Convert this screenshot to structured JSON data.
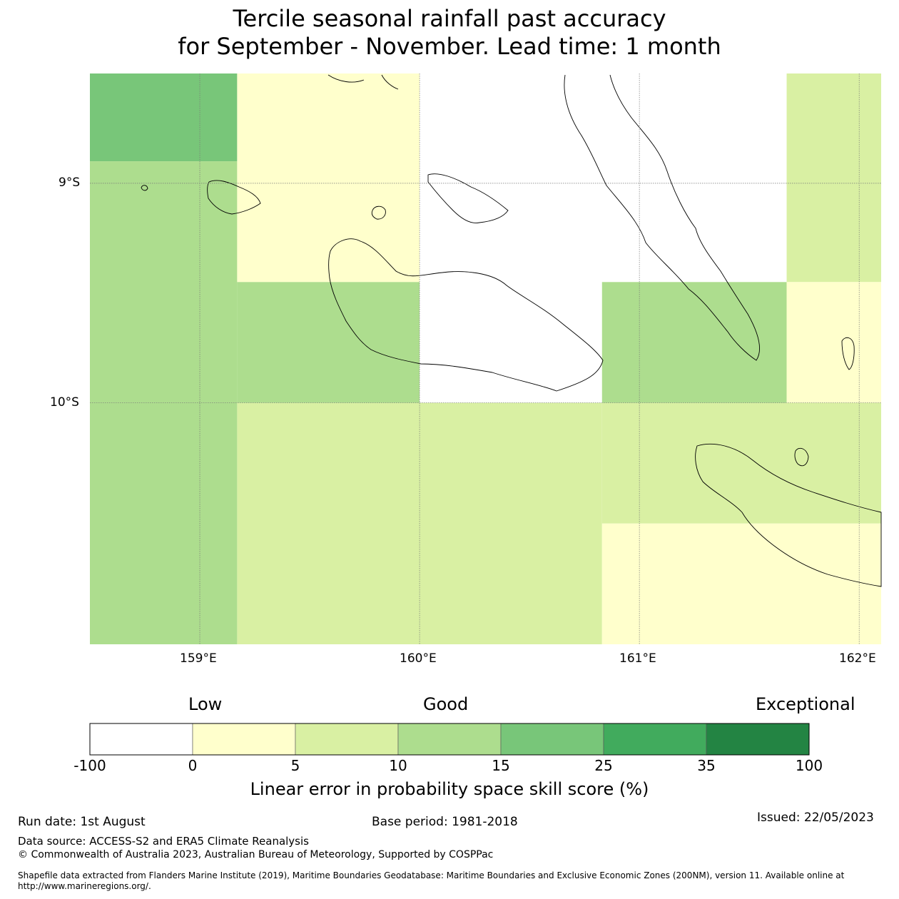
{
  "title": {
    "line1": "Tercile seasonal rainfall past accuracy",
    "line2": "for September - November. Lead time: 1 month"
  },
  "map": {
    "lat_labels": [
      "9°S",
      "10°S"
    ],
    "lon_labels": [
      "159°E",
      "160°E",
      "161°E",
      "162°E"
    ],
    "extent": {
      "lon": [
        158.5,
        162.1
      ],
      "lat": [
        -11.1,
        -8.5
      ]
    },
    "grid_cells": [
      {
        "lon": [
          158.5,
          159.17
        ],
        "lat": [
          -8.9,
          -8.5
        ],
        "color": "#78c679"
      },
      {
        "lon": [
          158.5,
          159.17
        ],
        "lat": [
          -11.1,
          -8.9
        ],
        "color": "#addd8e"
      },
      {
        "lon": [
          159.17,
          160.0
        ],
        "lat": [
          -9.45,
          -8.5
        ],
        "color": "#ffffcc"
      },
      {
        "lon": [
          159.17,
          160.0
        ],
        "lat": [
          -10.0,
          -9.45
        ],
        "color": "#addd8e"
      },
      {
        "lon": [
          160.0,
          160.83
        ],
        "lat": [
          -10.0,
          -8.5
        ],
        "color": "#ffffff"
      },
      {
        "lon": [
          160.83,
          161.67
        ],
        "lat": [
          -9.45,
          -8.5
        ],
        "color": "#ffffff"
      },
      {
        "lon": [
          160.83,
          161.67
        ],
        "lat": [
          -10.0,
          -9.45
        ],
        "color": "#addd8e"
      },
      {
        "lon": [
          161.67,
          162.1
        ],
        "lat": [
          -9.45,
          -8.5
        ],
        "color": "#d9f0a3"
      },
      {
        "lon": [
          161.67,
          162.1
        ],
        "lat": [
          -10.0,
          -9.45
        ],
        "color": "#ffffcc"
      },
      {
        "lon": [
          159.17,
          160.83
        ],
        "lat": [
          -11.1,
          -10.0
        ],
        "color": "#d9f0a3"
      },
      {
        "lon": [
          160.83,
          162.1
        ],
        "lat": [
          -10.55,
          -10.0
        ],
        "color": "#d9f0a3"
      },
      {
        "lon": [
          160.83,
          162.1
        ],
        "lat": [
          -11.1,
          -10.55
        ],
        "color": "#ffffcc"
      }
    ]
  },
  "colorbar": {
    "category_labels": [
      "Low",
      "Good",
      "Exceptional"
    ],
    "tick_labels": [
      "-100",
      "0",
      "5",
      "10",
      "15",
      "25",
      "35",
      "100"
    ],
    "colors": [
      "#ffffff",
      "#ffffcc",
      "#d9f0a3",
      "#addd8e",
      "#78c679",
      "#41ab5d",
      "#238443"
    ],
    "title": "Linear error in probability space skill score (%)"
  },
  "footer": {
    "run_date": "Run date: 1st August",
    "base_period": "Base period: 1981-2018",
    "issued": "Issued: 22/05/2023",
    "data_source": "Data source: ACCESS-S2 and ERA5 Climate Reanalysis",
    "copyright": "© Commonwealth of Australia 2023, Australian Bureau of Meteorology, Supported by COSPPac",
    "shapefile_note": "Shapefile data extracted from Flanders Marine Institute (2019), Maritime Boundaries Geodatabase: Maritime Boundaries and Exclusive Economic Zones (200NM), version 11. Available online at http://www.marineregions.org/."
  }
}
